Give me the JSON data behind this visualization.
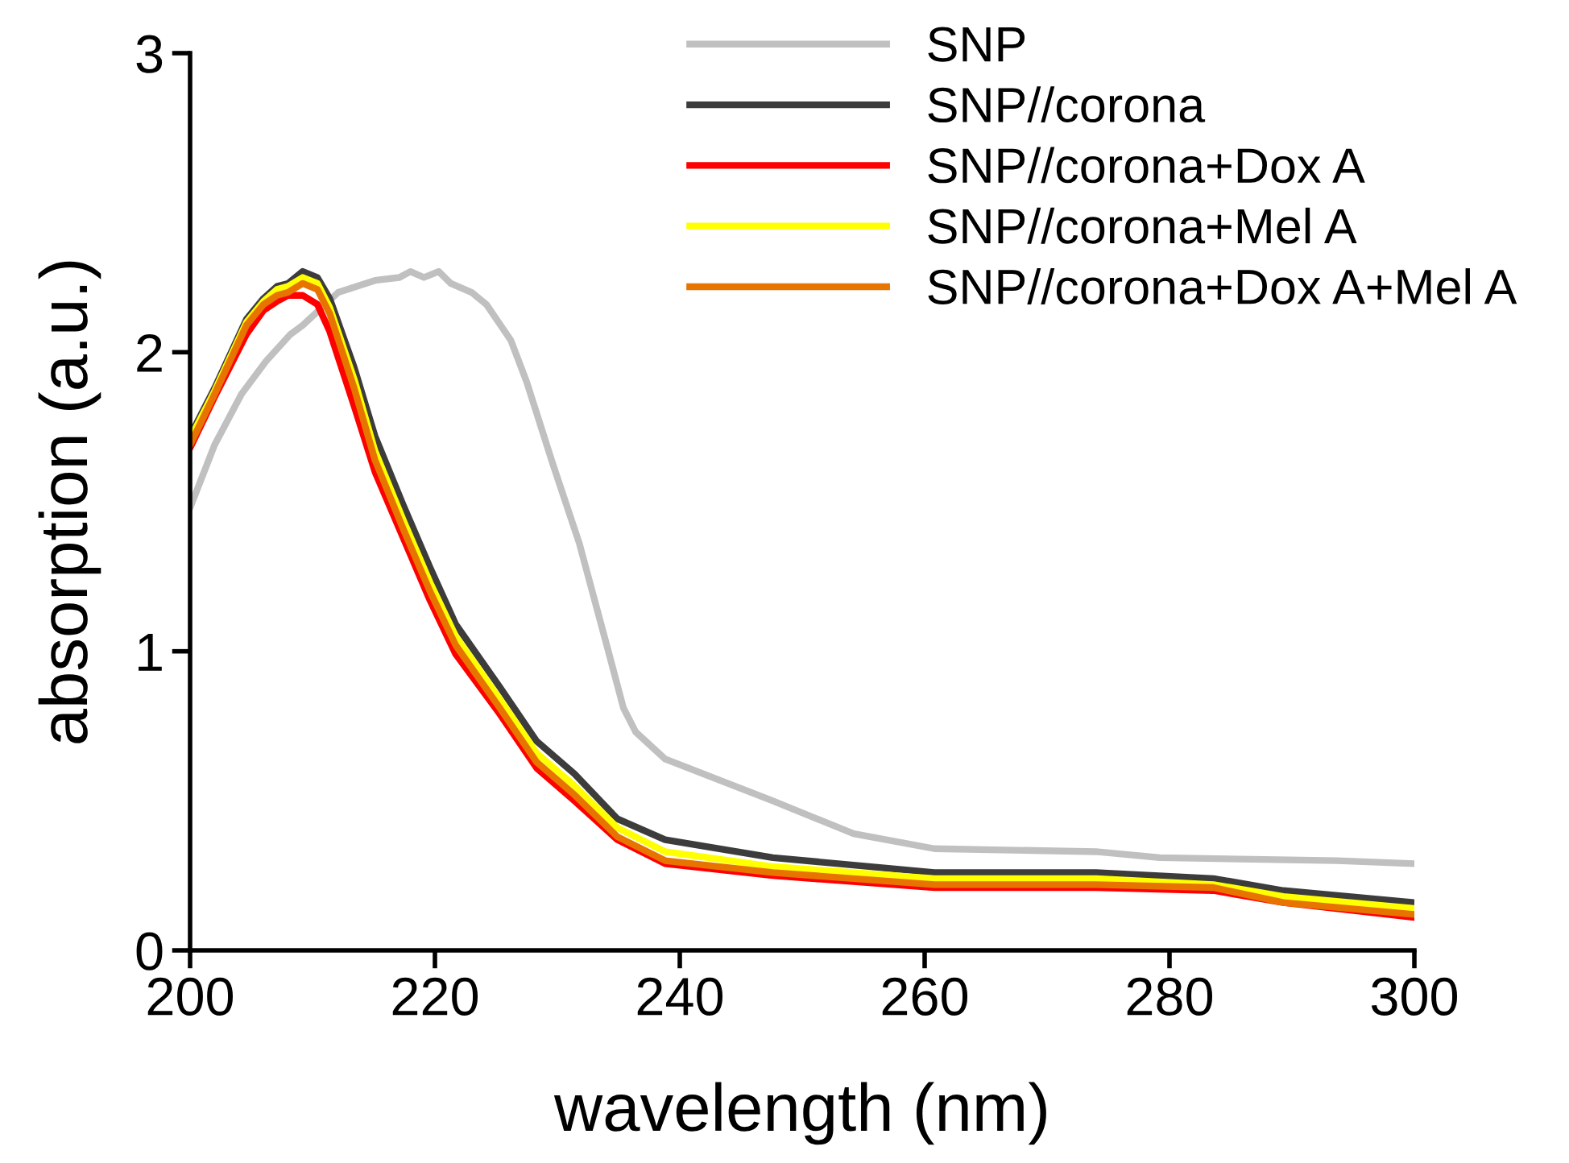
{
  "chart_data": {
    "type": "line",
    "xlabel": "wavelength (nm)",
    "ylabel": "absorption (a.u.)",
    "xlim": [
      200,
      300
    ],
    "ylim": [
      0,
      3
    ],
    "xticks": [
      200,
      220,
      240,
      260,
      280,
      300
    ],
    "yticks": [
      0,
      1,
      2,
      3
    ],
    "grid": false,
    "legend": "top right",
    "marker": "none",
    "line_style": "solid",
    "series": [
      {
        "name": "SNP",
        "color": "#c0c0c0",
        "x": [
          200,
          202,
          204.2,
          206.2,
          208.2,
          209.2,
          212.1,
          215.1,
          217.1,
          218,
          219.1,
          220.3,
          221.3,
          223,
          224.2,
          226.2,
          227.5,
          229.6,
          231.8,
          234.1,
          235.4,
          236.4,
          238.8,
          247.6,
          254.2,
          260.8,
          274,
          279.2,
          293.7,
          300
        ],
        "values": [
          1.48,
          1.69,
          1.86,
          1.97,
          2.06,
          2.09,
          2.2,
          2.24,
          2.25,
          2.27,
          2.25,
          2.27,
          2.23,
          2.2,
          2.16,
          2.04,
          1.9,
          1.63,
          1.36,
          1.01,
          0.81,
          0.73,
          0.64,
          0.5,
          0.39,
          0.34,
          0.33,
          0.31,
          0.3,
          0.29
        ]
      },
      {
        "name": "SNP//corona",
        "color": "#3c3c3c",
        "x": [
          200,
          202,
          204.6,
          206,
          207.1,
          208,
          209.2,
          210.4,
          211.4,
          213.4,
          215.1,
          217.4,
          219.6,
          221.7,
          225.3,
          228.3,
          231.4,
          234.9,
          238.8,
          247.6,
          260.8,
          274,
          283.6,
          289.3,
          300
        ],
        "values": [
          1.72,
          1.88,
          2.11,
          2.18,
          2.22,
          2.23,
          2.27,
          2.25,
          2.18,
          1.95,
          1.72,
          1.49,
          1.28,
          1.09,
          0.88,
          0.7,
          0.59,
          0.44,
          0.37,
          0.31,
          0.26,
          0.26,
          0.24,
          0.2,
          0.16
        ]
      },
      {
        "name": "SNP//corona+Dox A",
        "color": "#ff0000",
        "x": [
          200,
          202,
          204.6,
          206,
          207.1,
          208,
          209.2,
          210.4,
          211.4,
          213.4,
          215.1,
          217.4,
          219.6,
          221.7,
          225.3,
          228.3,
          231.4,
          234.9,
          238.8,
          247.6,
          260.8,
          274,
          283.6,
          289.3,
          300
        ],
        "values": [
          1.68,
          1.85,
          2.06,
          2.14,
          2.17,
          2.19,
          2.19,
          2.16,
          2.07,
          1.82,
          1.6,
          1.38,
          1.17,
          0.99,
          0.79,
          0.61,
          0.5,
          0.37,
          0.29,
          0.25,
          0.21,
          0.21,
          0.2,
          0.16,
          0.11
        ]
      },
      {
        "name": "SNP//corona+Mel A",
        "color": "#ffff00",
        "x": [
          200,
          202,
          204.6,
          206,
          207.1,
          208,
          209.2,
          210.4,
          211.4,
          213.4,
          215.1,
          217.4,
          219.6,
          221.7,
          225.3,
          228.3,
          231.4,
          234.9,
          238.8,
          247.6,
          260.8,
          274,
          283.6,
          289.3,
          300
        ],
        "values": [
          1.71,
          1.87,
          2.1,
          2.17,
          2.21,
          2.22,
          2.25,
          2.23,
          2.15,
          1.91,
          1.67,
          1.44,
          1.23,
          1.05,
          0.84,
          0.66,
          0.55,
          0.41,
          0.33,
          0.28,
          0.24,
          0.24,
          0.22,
          0.18,
          0.14
        ]
      },
      {
        "name": "SNP//corona+Dox A+Mel A",
        "color": "#e87400",
        "x": [
          200,
          202,
          204.6,
          206,
          207.1,
          208,
          209.2,
          210.4,
          211.4,
          213.4,
          215.1,
          217.4,
          219.6,
          221.7,
          225.3,
          228.3,
          231.4,
          234.9,
          238.8,
          247.6,
          260.8,
          274,
          283.6,
          289.3,
          300
        ],
        "values": [
          1.69,
          1.86,
          2.09,
          2.16,
          2.19,
          2.2,
          2.23,
          2.21,
          2.13,
          1.88,
          1.64,
          1.41,
          1.2,
          1.02,
          0.81,
          0.63,
          0.52,
          0.38,
          0.3,
          0.26,
          0.22,
          0.22,
          0.21,
          0.16,
          0.12
        ]
      }
    ]
  }
}
